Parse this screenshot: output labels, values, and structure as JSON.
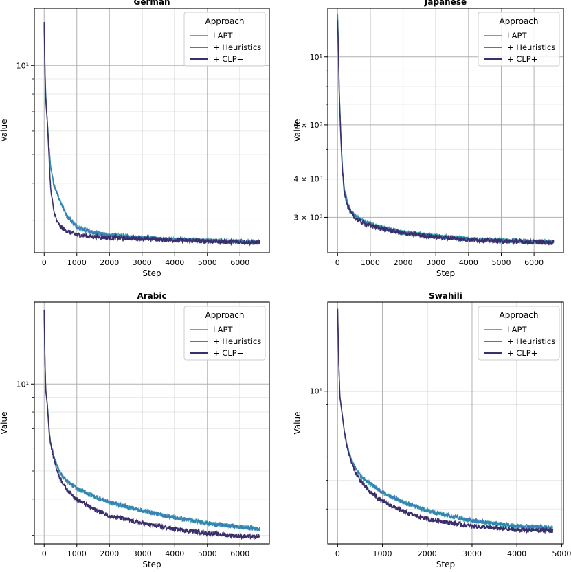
{
  "chart_data": [
    {
      "type": "line",
      "title": "German",
      "xlabel": "Step",
      "ylabel": "Value",
      "yscale": "log",
      "xlim": [
        -300,
        6900
      ],
      "ylim": [
        2.33,
        15.6
      ],
      "xticks": [
        0,
        1000,
        2000,
        3000,
        4000,
        5000,
        6000
      ],
      "xtick_labels": [
        "0",
        "1000",
        "2000",
        "3000",
        "4000",
        "5000",
        "6000"
      ],
      "y_major_ticks": [
        10
      ],
      "y_major_labels": [
        "10¹"
      ],
      "y_minor_ticks": [
        3,
        4,
        5,
        6,
        7,
        8,
        9
      ],
      "grid": true,
      "legend": {
        "title": "Approach",
        "position": "top-right"
      },
      "series": [
        {
          "name": "LAPT",
          "color": "#3fbfa8",
          "x": [
            0,
            25,
            50,
            100,
            150,
            200,
            300,
            400,
            500,
            700,
            1000,
            1500,
            2000,
            3000,
            4000,
            5000,
            6000,
            6600
          ],
          "y": [
            14.0,
            9.9,
            8.0,
            6.4,
            5.3,
            4.5,
            3.95,
            3.7,
            3.45,
            3.1,
            2.85,
            2.72,
            2.67,
            2.62,
            2.58,
            2.56,
            2.54,
            2.53
          ]
        },
        {
          "name": "+ Heuristics",
          "color": "#3a7fb5",
          "x": [
            0,
            25,
            50,
            100,
            150,
            200,
            300,
            400,
            500,
            700,
            1000,
            1500,
            2000,
            3000,
            4000,
            5000,
            6000,
            6600
          ],
          "y": [
            14.0,
            9.9,
            8.0,
            6.4,
            5.3,
            4.5,
            3.95,
            3.7,
            3.45,
            3.1,
            2.85,
            2.72,
            2.67,
            2.62,
            2.58,
            2.56,
            2.54,
            2.53
          ]
        },
        {
          "name": "+ CLP+",
          "color": "#3b2f6b",
          "x": [
            0,
            25,
            50,
            100,
            150,
            200,
            300,
            400,
            500,
            700,
            1000,
            1500,
            2000,
            3000,
            4000,
            5000,
            6000,
            6600
          ],
          "y": [
            14.0,
            9.3,
            7.6,
            6.4,
            4.9,
            3.8,
            3.2,
            2.95,
            2.85,
            2.75,
            2.68,
            2.64,
            2.62,
            2.6,
            2.57,
            2.55,
            2.53,
            2.52
          ]
        }
      ]
    },
    {
      "type": "line",
      "title": "Japanese",
      "xlabel": "Step",
      "ylabel": "Value",
      "yscale": "log",
      "xlim": [
        -300,
        6900
      ],
      "ylim": [
        2.3,
        14.4
      ],
      "xticks": [
        0,
        1000,
        2000,
        3000,
        4000,
        5000,
        6000
      ],
      "xtick_labels": [
        "0",
        "1000",
        "2000",
        "3000",
        "4000",
        "5000",
        "6000"
      ],
      "y_major_ticks": [
        3,
        4,
        6,
        10
      ],
      "y_major_labels": [
        "3 × 10⁰",
        "4 × 10⁰",
        "6 × 10⁰",
        "10¹"
      ],
      "y_minor_ticks": [
        5,
        7,
        8,
        9
      ],
      "grid": true,
      "legend": {
        "title": "Approach",
        "position": "top-right"
      },
      "series": [
        {
          "name": "LAPT",
          "color": "#3fbfa8",
          "x": [
            0,
            25,
            50,
            100,
            150,
            200,
            300,
            400,
            500,
            700,
            1000,
            1500,
            2000,
            3000,
            4000,
            5000,
            6000,
            6600
          ],
          "y": [
            13.8,
            11.0,
            7.8,
            5.6,
            4.3,
            3.75,
            3.35,
            3.15,
            3.05,
            2.95,
            2.85,
            2.75,
            2.68,
            2.6,
            2.55,
            2.52,
            2.5,
            2.49
          ]
        },
        {
          "name": "+ Heuristics",
          "color": "#3a7fb5",
          "x": [
            0,
            25,
            50,
            100,
            150,
            200,
            300,
            400,
            500,
            700,
            1000,
            1500,
            2000,
            3000,
            4000,
            5000,
            6000,
            6600
          ],
          "y": [
            13.8,
            11.0,
            7.8,
            5.6,
            4.3,
            3.75,
            3.35,
            3.15,
            3.05,
            2.95,
            2.85,
            2.75,
            2.68,
            2.6,
            2.55,
            2.52,
            2.5,
            2.49
          ]
        },
        {
          "name": "+ CLP+",
          "color": "#3b2f6b",
          "x": [
            0,
            25,
            50,
            100,
            150,
            200,
            300,
            400,
            500,
            700,
            1000,
            1500,
            2000,
            3000,
            4000,
            5000,
            6000,
            6600
          ],
          "y": [
            13.2,
            10.6,
            7.5,
            5.4,
            4.2,
            3.65,
            3.3,
            3.1,
            3.0,
            2.9,
            2.82,
            2.73,
            2.66,
            2.59,
            2.54,
            2.51,
            2.49,
            2.48
          ]
        }
      ]
    },
    {
      "type": "line",
      "title": "Arabic",
      "xlabel": "Step",
      "ylabel": "Value",
      "yscale": "log",
      "xlim": [
        -300,
        6900
      ],
      "ylim": [
        2.8,
        19.2
      ],
      "xticks": [
        0,
        1000,
        2000,
        3000,
        4000,
        5000,
        6000
      ],
      "xtick_labels": [
        "0",
        "1000",
        "2000",
        "3000",
        "4000",
        "5000",
        "6000"
      ],
      "y_major_ticks": [
        10
      ],
      "y_major_labels": [
        "10¹"
      ],
      "y_minor_ticks": [
        3,
        4,
        5,
        6,
        7,
        8,
        9
      ],
      "grid": true,
      "legend": {
        "title": "Approach",
        "position": "top-right"
      },
      "series": [
        {
          "name": "LAPT",
          "color": "#3fbfa8",
          "x": [
            0,
            25,
            50,
            100,
            150,
            200,
            300,
            400,
            500,
            700,
            1000,
            1500,
            2000,
            3000,
            4000,
            5000,
            6000,
            6600
          ],
          "y": [
            18.0,
            12.0,
            9.5,
            8.5,
            7.0,
            6.3,
            5.6,
            5.2,
            4.9,
            4.6,
            4.35,
            4.1,
            3.9,
            3.65,
            3.45,
            3.3,
            3.2,
            3.15
          ]
        },
        {
          "name": "+ Heuristics",
          "color": "#3a7fb5",
          "x": [
            0,
            25,
            50,
            100,
            150,
            200,
            300,
            400,
            500,
            700,
            1000,
            1500,
            2000,
            3000,
            4000,
            5000,
            6000,
            6600
          ],
          "y": [
            18.0,
            12.0,
            9.5,
            8.5,
            7.0,
            6.3,
            5.6,
            5.2,
            4.9,
            4.6,
            4.35,
            4.1,
            3.9,
            3.65,
            3.45,
            3.3,
            3.2,
            3.15
          ]
        },
        {
          "name": "+ CLP+",
          "color": "#3b2f6b",
          "x": [
            0,
            25,
            50,
            100,
            150,
            200,
            300,
            400,
            500,
            700,
            1000,
            1500,
            2000,
            3000,
            4000,
            5000,
            6000,
            6600
          ],
          "y": [
            18.0,
            12.0,
            9.5,
            8.4,
            6.9,
            6.2,
            5.5,
            5.0,
            4.7,
            4.3,
            4.0,
            3.7,
            3.5,
            3.3,
            3.15,
            3.05,
            2.98,
            2.95
          ]
        }
      ]
    },
    {
      "type": "line",
      "title": "Swahili",
      "xlabel": "Step",
      "ylabel": "Value",
      "yscale": "log",
      "xlim": [
        -220,
        5040
      ],
      "ylim": [
        3.05,
        20.0
      ],
      "xticks": [
        0,
        1000,
        2000,
        3000,
        4000,
        5000
      ],
      "xtick_labels": [
        "0",
        "1000",
        "2000",
        "3000",
        "4000",
        "5000"
      ],
      "y_major_ticks": [
        10
      ],
      "y_major_labels": [
        "10¹"
      ],
      "y_minor_ticks": [
        4,
        5,
        6,
        7,
        8,
        9
      ],
      "grid": true,
      "legend": {
        "title": "Approach",
        "position": "top-right"
      },
      "series": [
        {
          "name": "LAPT",
          "color": "#3fbfa8",
          "x": [
            0,
            25,
            50,
            100,
            150,
            200,
            300,
            400,
            500,
            700,
            1000,
            1500,
            2000,
            3000,
            4000,
            4800
          ],
          "y": [
            19.0,
            12.5,
            9.6,
            8.4,
            7.3,
            6.6,
            5.9,
            5.5,
            5.2,
            4.9,
            4.55,
            4.2,
            3.95,
            3.65,
            3.5,
            3.45
          ]
        },
        {
          "name": "+ Heuristics",
          "color": "#3a7fb5",
          "x": [
            0,
            25,
            50,
            100,
            150,
            200,
            300,
            400,
            500,
            700,
            1000,
            1500,
            2000,
            3000,
            4000,
            4800
          ],
          "y": [
            19.0,
            12.5,
            9.6,
            8.4,
            7.3,
            6.6,
            5.9,
            5.5,
            5.2,
            4.9,
            4.55,
            4.2,
            3.95,
            3.65,
            3.5,
            3.45
          ]
        },
        {
          "name": "+ CLP+",
          "color": "#3b2f6b",
          "x": [
            0,
            25,
            50,
            100,
            150,
            200,
            300,
            400,
            500,
            700,
            1000,
            1500,
            2000,
            3000,
            4000,
            4800
          ],
          "y": [
            19.0,
            12.5,
            9.6,
            8.4,
            7.3,
            6.6,
            5.8,
            5.3,
            5.0,
            4.6,
            4.25,
            3.9,
            3.7,
            3.5,
            3.4,
            3.38
          ]
        }
      ]
    }
  ]
}
